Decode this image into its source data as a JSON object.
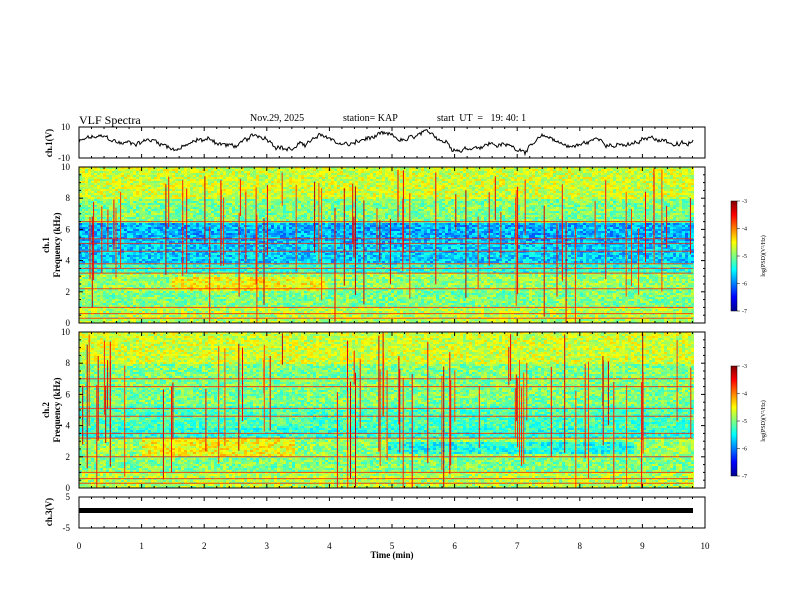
{
  "header": {
    "title": "VLF Spectra",
    "date": "Nov.29, 2025",
    "station": "station= KAP",
    "start": "start  UT  =   19: 40: 1"
  },
  "chart_data": [
    {
      "type": "line",
      "name": "ch1-waveform",
      "ylabel": "ch.1(V)",
      "ylim": [
        -10,
        10
      ],
      "yticks": [
        -10,
        10
      ]
    },
    {
      "type": "heatmap",
      "name": "ch1-spectrogram",
      "ylabel": "ch.1",
      "ylabel2": "Frequency (kHz)",
      "ylim": [
        0,
        10
      ],
      "yticks": [
        0,
        2,
        4,
        6,
        8,
        10
      ],
      "xlim": [
        0,
        10
      ],
      "colorbar": {
        "label": "log(PSD)(V²/Hz)",
        "min": -7,
        "max": -3,
        "ticks": [
          -3,
          -4,
          -5,
          -6,
          -7
        ]
      },
      "persistent_lines_khz": [
        0.3,
        0.6,
        1.0,
        2.2,
        3.2,
        3.5,
        3.8,
        4.6,
        5.1,
        5.4,
        6.5
      ]
    },
    {
      "type": "heatmap",
      "name": "ch2-spectrogram",
      "ylabel": "ch.2",
      "ylabel2": "Frequency (kHz)",
      "ylim": [
        0,
        10
      ],
      "yticks": [
        0,
        2,
        4,
        6,
        8,
        10
      ],
      "xlim": [
        0,
        10
      ],
      "colorbar": {
        "label": "log(PSD)(V²/Hz)",
        "min": -7,
        "max": -3,
        "ticks": [
          -3,
          -4,
          -5,
          -6,
          -7
        ]
      },
      "persistent_lines_khz": [
        0.3,
        0.6,
        1.0,
        2.0,
        3.2,
        3.5,
        4.6,
        5.1,
        6.5,
        7.0
      ]
    },
    {
      "type": "line",
      "name": "ch3-waveform",
      "ylabel": "ch.3(V)",
      "ylim": [
        -5,
        5
      ],
      "yticks": [
        -5,
        5
      ]
    }
  ],
  "xaxis": {
    "label": "Time (min)",
    "range": [
      0,
      10
    ],
    "ticks": [
      "0",
      "1",
      "2",
      "3",
      "4",
      "5",
      "6",
      "7",
      "8",
      "9",
      "10"
    ]
  }
}
